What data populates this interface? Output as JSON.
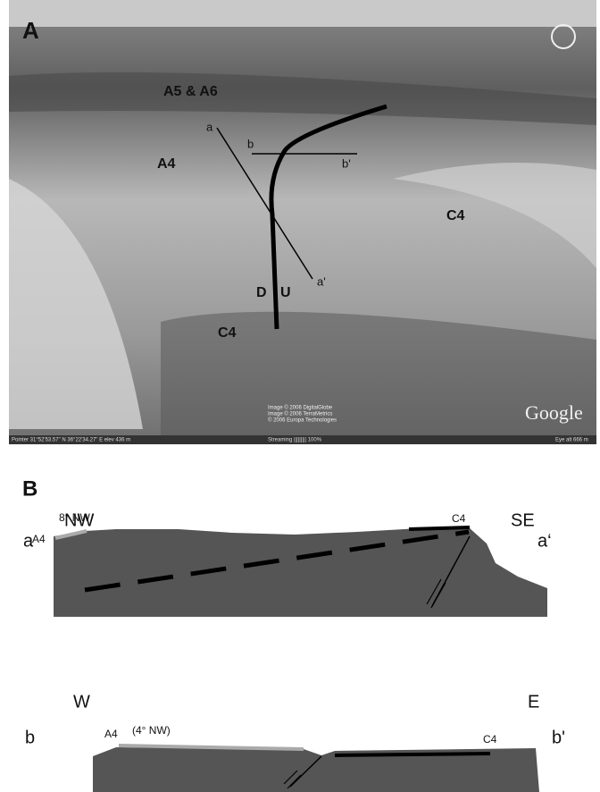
{
  "panel_a": {
    "label": "A",
    "labels": {
      "a5_a6": "A5 & A6",
      "a": "a",
      "b": "b",
      "b_prime": "b'",
      "a4": "A4",
      "c4_east": "C4",
      "a_prime": "a'",
      "d": "D",
      "u": "U",
      "c4_south": "C4"
    },
    "credits": [
      "Image © 2006 DigitalGlobe",
      "Image © 2006 TerraMetrics",
      "© 2006 Europa Technologies"
    ],
    "logo": "Google",
    "status_bar": {
      "pointer": "Pointer 31°52'53.57\" N 36°22'34.27\" E elev 436 m",
      "streaming": "Streaming ||||||||| 100%",
      "eye_alt": "Eye alt 666 m"
    }
  },
  "panel_b": {
    "label": "B",
    "section_a": {
      "left_dir": "NW",
      "right_dir": "SE",
      "left_end": "a",
      "right_end": "a‘",
      "dip": "8° NW",
      "unit_left": "A4",
      "unit_right": "C4"
    },
    "section_b": {
      "left_dir": "W",
      "right_dir": "E",
      "left_end": "b",
      "right_end": "b'",
      "dip": "(4° NW)",
      "unit_left": "A4",
      "unit_right": "C4"
    }
  }
}
